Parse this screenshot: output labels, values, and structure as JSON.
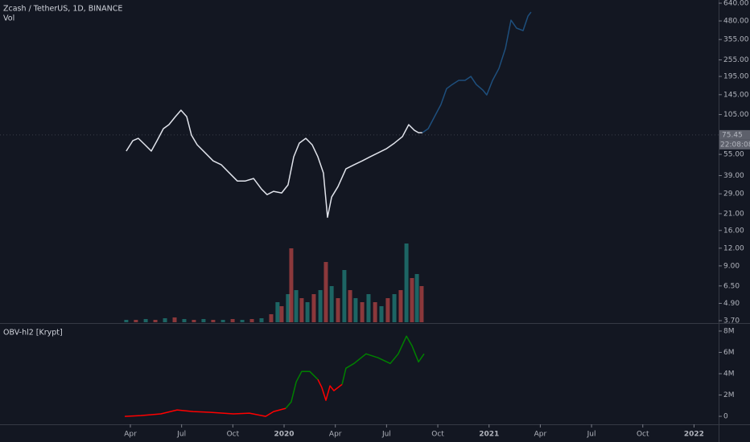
{
  "chart_data": [
    {
      "type": "line",
      "title": "Zcash / TetherUS, 1D, BINANCE",
      "log_scale": true,
      "xlim": [
        2018.614,
        2022.12
      ],
      "ylim": [
        3.7,
        640
      ],
      "xticks": [
        {
          "value": 2019.25,
          "label": "Apr"
        },
        {
          "value": 2019.5,
          "label": "Jul"
        },
        {
          "value": 2019.75,
          "label": "Oct"
        },
        2020,
        {
          "value": 2020.25,
          "label": "Apr"
        },
        {
          "value": 2020.5,
          "label": "Jul"
        },
        {
          "value": 2020.75,
          "label": "Oct"
        },
        2021,
        {
          "value": 2021.25,
          "label": "Apr"
        },
        {
          "value": 2021.5,
          "label": "Jul"
        },
        {
          "value": 2021.75,
          "label": "Oct"
        },
        2022
      ],
      "yticks": [
        {
          "value": 640,
          "label": "640.00"
        },
        {
          "value": 480,
          "label": "480.00"
        },
        {
          "value": 355,
          "label": "355.00"
        },
        {
          "value": 255,
          "label": "255.00"
        },
        {
          "value": 195,
          "label": "195.00"
        },
        {
          "value": 145,
          "label": "145.00"
        },
        {
          "value": 105,
          "label": "105.00"
        },
        {
          "value": 55,
          "label": "55.00"
        },
        {
          "value": 39,
          "label": "39.00"
        },
        {
          "value": 29,
          "label": "29.00"
        },
        {
          "value": 21,
          "label": "21.00"
        },
        {
          "value": 16,
          "label": "16.00"
        },
        {
          "value": 12,
          "label": "12.00"
        },
        {
          "value": 9,
          "label": "9.00"
        },
        {
          "value": 6.5,
          "label": "6.50"
        },
        {
          "value": 4.9,
          "label": "4.90"
        },
        {
          "value": 3.7,
          "label": "3.70"
        }
      ],
      "last_price": 75.45,
      "countdown": "22:08:08",
      "series": [
        {
          "color": "#e0e3eb",
          "x": [
            2019.23,
            2019.262,
            2019.289,
            2019.321,
            2019.352,
            2019.38,
            2019.411,
            2019.438,
            2019.47,
            2019.497,
            2019.525,
            2019.548,
            2019.576,
            2019.615,
            2019.654,
            2019.694,
            2019.733,
            2019.772,
            2019.811,
            2019.851,
            2019.89,
            2019.917,
            2019.949,
            2019.988,
            2020.019,
            2020.047,
            2020.074,
            2020.106,
            2020.137,
            2020.165,
            2020.192,
            2020.212,
            2020.232,
            2020.263,
            2020.302,
            2020.341,
            2020.381,
            2020.42,
            2020.459,
            2020.498,
            2020.538,
            2020.577,
            2020.608,
            2020.636,
            2020.656,
            2020.675
          ],
          "values": [
            58,
            68.7,
            71.4,
            64.3,
            58,
            68.7,
            83.5,
            89.1,
            101.5,
            112.7,
            101.5,
            75.2,
            64.3,
            56.4,
            49.5,
            46.4,
            40.7,
            35.7,
            35.7,
            37.2,
            31.3,
            28.6,
            30.2,
            29.4,
            33.5,
            52.9,
            66,
            71.4,
            64.3,
            52.9,
            40.7,
            19.8,
            27.5,
            32.6,
            43.5,
            46.4,
            49.5,
            52.9,
            56.4,
            60.2,
            66,
            73.3,
            89.1,
            81.3,
            78.2,
            78.2
          ]
        },
        {
          "color": "#1e4f7d",
          "x": [
            2020.675,
            2020.703,
            2020.734,
            2020.765,
            2020.793,
            2020.82,
            2020.852,
            2020.883,
            2020.911,
            2020.938,
            2020.97,
            2020.989,
            2021.017,
            2021.048,
            2021.08,
            2021.107,
            2021.134,
            2021.166,
            2021.19,
            2021.205
          ],
          "values": [
            78.2,
            83.5,
            101.5,
            123.5,
            160,
            171,
            183,
            183,
            195,
            171,
            156,
            144.5,
            183,
            222,
            308,
            486,
            427,
            410,
            519,
            554
          ]
        }
      ],
      "volume": {
        "name": "Vol",
        "ylim": [
          0,
          100
        ],
        "colors": [
          "#26a69a",
          "#ef5350"
        ],
        "x": [
          2019.23,
          2019.277,
          2019.325,
          2019.372,
          2019.419,
          2019.466,
          2019.513,
          2019.56,
          2019.607,
          2019.654,
          2019.702,
          2019.749,
          2019.796,
          2019.843,
          2019.89,
          2019.937,
          2019.968,
          2019.988,
          2020.019,
          2020.035,
          2020.059,
          2020.086,
          2020.114,
          2020.145,
          2020.177,
          2020.204,
          2020.232,
          2020.263,
          2020.294,
          2020.322,
          2020.349,
          2020.381,
          2020.412,
          2020.444,
          2020.475,
          2020.506,
          2020.538,
          2020.569,
          2020.597,
          2020.624,
          2020.648,
          2020.671
        ],
        "values": [
          3,
          3,
          4,
          3,
          5,
          6,
          4,
          3,
          4,
          3,
          3,
          4,
          3,
          4,
          5,
          10,
          25,
          20,
          35,
          92,
          40,
          30,
          25,
          35,
          40,
          75,
          45,
          30,
          65,
          40,
          30,
          25,
          35,
          25,
          20,
          30,
          35,
          40,
          98,
          55,
          60,
          45
        ]
      }
    },
    {
      "type": "line",
      "title": "OBV-hl2 [Krypt]",
      "xlim": [
        2018.614,
        2022.12
      ],
      "ylim": [
        -750000,
        8600000
      ],
      "yticks": [
        {
          "value": 8000000,
          "label": "8M"
        },
        {
          "value": 6000000,
          "label": "6M"
        },
        {
          "value": 4000000,
          "label": "4M"
        },
        {
          "value": 2000000,
          "label": "2M"
        },
        0
      ],
      "x": [
        2019.223,
        2019.301,
        2019.399,
        2019.478,
        2019.556,
        2019.635,
        2019.753,
        2019.831,
        2019.91,
        2019.949,
        2020.008,
        2020.035,
        2020.059,
        2020.086,
        2020.125,
        2020.165,
        2020.184,
        2020.204,
        2020.224,
        2020.243,
        2020.283,
        2020.302,
        2020.341,
        2020.4,
        2020.459,
        2020.518,
        2020.557,
        2020.597,
        2020.624,
        2020.656,
        2020.683
      ],
      "values": [
        0,
        75000,
        230000,
        600000,
        450000,
        380000,
        230000,
        300000,
        0,
        450000,
        750000,
        1350000,
        3230000,
        4210000,
        4210000,
        3460000,
        2710000,
        1500000,
        2860000,
        2410000,
        3000000,
        4510000,
        4960000,
        5860000,
        5490000,
        4960000,
        5860000,
        7520000,
        6620000,
        5110000,
        5860000
      ],
      "colors": [
        "#ff0000",
        "#ff0000",
        "#ff0000",
        "#ff0000",
        "#ff0000",
        "#ff0000",
        "#ff0000",
        "#ff0000",
        "#ff0000",
        "#ff0000",
        "#ff0000",
        "#008000",
        "#008000",
        "#008000",
        "#008000",
        "#008000",
        "#ff0000",
        "#ff0000",
        "#ff0000",
        "#ff0000",
        "#ff0000",
        "#008000",
        "#008000",
        "#008000",
        "#008000",
        "#008000",
        "#008000",
        "#008000",
        "#008000",
        "#008000",
        "#008000"
      ]
    }
  ]
}
